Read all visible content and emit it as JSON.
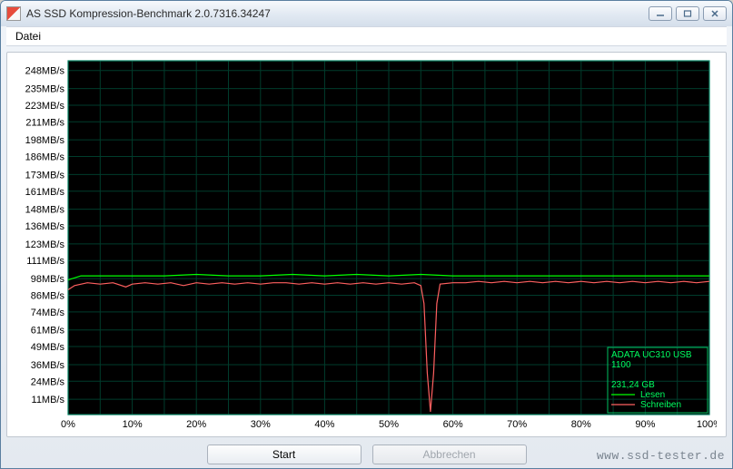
{
  "window": {
    "title": "AS SSD Kompression-Benchmark 2.0.7316.34247"
  },
  "menu": {
    "datei": "Datei"
  },
  "buttons": {
    "start": "Start",
    "cancel": "Abbrechen"
  },
  "watermark": "www.ssd-tester.de",
  "chart": {
    "type": "line",
    "background_color": "#000000",
    "grid_color": "#003c2c",
    "frame_color": "#008060",
    "axis_label_color": "#000000",
    "axis_font_size": 11,
    "y_unit": "MB/s",
    "y_ticks": [
      11,
      24,
      36,
      49,
      61,
      74,
      86,
      98,
      111,
      123,
      136,
      148,
      161,
      173,
      186,
      198,
      211,
      223,
      235,
      248
    ],
    "y_tick_labels": [
      "11MB/s",
      "24MB/s",
      "36MB/s",
      "49MB/s",
      "61MB/s",
      "74MB/s",
      "86MB/s",
      "98MB/s",
      "111MB/s",
      "123MB/s",
      "136MB/s",
      "148MB/s",
      "161MB/s",
      "173MB/s",
      "186MB/s",
      "198MB/s",
      "211MB/s",
      "223MB/s",
      "235MB/s",
      "248MB/s"
    ],
    "ylim": [
      0,
      255
    ],
    "x_ticks": [
      0,
      10,
      20,
      30,
      40,
      50,
      60,
      70,
      80,
      90,
      100
    ],
    "x_tick_labels": [
      "0%",
      "10%",
      "20%",
      "30%",
      "40%",
      "50%",
      "60%",
      "70%",
      "80%",
      "90%",
      "100%"
    ],
    "xlim": [
      0,
      100
    ],
    "x_gridlines": [
      5,
      10,
      15,
      20,
      25,
      30,
      35,
      40,
      45,
      50,
      55,
      60,
      65,
      70,
      75,
      80,
      85,
      90,
      95
    ],
    "series": [
      {
        "name": "lesen",
        "label": "Lesen",
        "color": "#00ff00",
        "line_width": 1.2,
        "data": [
          [
            0,
            97
          ],
          [
            2,
            100
          ],
          [
            5,
            100
          ],
          [
            10,
            100
          ],
          [
            15,
            100
          ],
          [
            20,
            101
          ],
          [
            25,
            100
          ],
          [
            30,
            100
          ],
          [
            35,
            101
          ],
          [
            40,
            100
          ],
          [
            45,
            101
          ],
          [
            50,
            100
          ],
          [
            55,
            101
          ],
          [
            60,
            100
          ],
          [
            65,
            100
          ],
          [
            70,
            100
          ],
          [
            75,
            100
          ],
          [
            80,
            100
          ],
          [
            85,
            100
          ],
          [
            90,
            100
          ],
          [
            95,
            100
          ],
          [
            100,
            100
          ]
        ]
      },
      {
        "name": "schreiben",
        "label": "Schreiben",
        "color": "#ff6060",
        "line_width": 1.2,
        "data": [
          [
            0,
            90
          ],
          [
            1,
            93
          ],
          [
            3,
            95
          ],
          [
            5,
            94
          ],
          [
            7,
            95
          ],
          [
            9,
            92
          ],
          [
            10,
            94
          ],
          [
            12,
            95
          ],
          [
            14,
            94
          ],
          [
            16,
            95
          ],
          [
            18,
            93
          ],
          [
            20,
            95
          ],
          [
            22,
            94
          ],
          [
            24,
            95
          ],
          [
            26,
            94
          ],
          [
            28,
            95
          ],
          [
            30,
            94
          ],
          [
            32,
            95
          ],
          [
            34,
            95
          ],
          [
            36,
            94
          ],
          [
            38,
            95
          ],
          [
            40,
            94
          ],
          [
            42,
            95
          ],
          [
            44,
            94
          ],
          [
            46,
            95
          ],
          [
            48,
            94
          ],
          [
            50,
            95
          ],
          [
            52,
            94
          ],
          [
            54,
            95
          ],
          [
            55,
            93
          ],
          [
            55.5,
            80
          ],
          [
            56,
            30
          ],
          [
            56.5,
            2
          ],
          [
            57,
            30
          ],
          [
            57.5,
            80
          ],
          [
            58,
            94
          ],
          [
            60,
            95
          ],
          [
            62,
            95
          ],
          [
            64,
            96
          ],
          [
            66,
            95
          ],
          [
            68,
            96
          ],
          [
            70,
            95
          ],
          [
            72,
            96
          ],
          [
            74,
            95
          ],
          [
            76,
            96
          ],
          [
            78,
            95
          ],
          [
            80,
            96
          ],
          [
            82,
            95
          ],
          [
            84,
            96
          ],
          [
            86,
            95
          ],
          [
            88,
            96
          ],
          [
            90,
            95
          ],
          [
            92,
            96
          ],
          [
            94,
            95
          ],
          [
            96,
            96
          ],
          [
            98,
            95
          ],
          [
            100,
            96
          ]
        ]
      }
    ],
    "info_box": {
      "border_color": "#00c060",
      "text_color": "#00ff60",
      "lines": [
        "ADATA UC310 USB",
        "1100",
        "",
        "231,24 GB"
      ],
      "legend": [
        {
          "color": "#00ff00",
          "label": "Lesen"
        },
        {
          "color": "#ff6060",
          "label": "Schreiben"
        }
      ]
    }
  }
}
